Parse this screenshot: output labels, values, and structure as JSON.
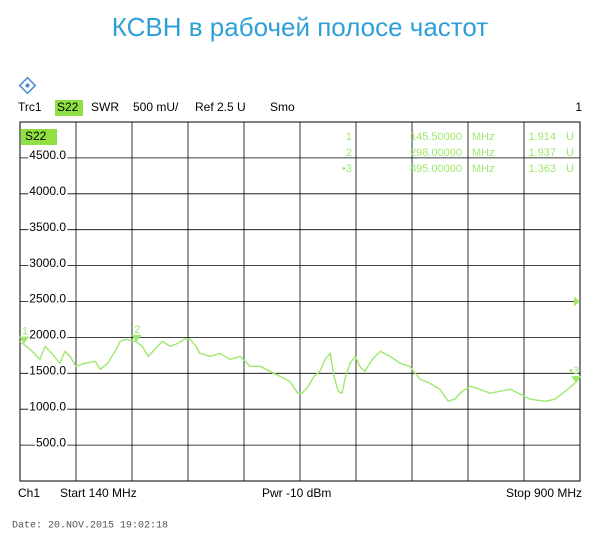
{
  "chart_data": {
    "type": "line",
    "title": "КСВН в рабочей полосе частот",
    "trace_name": "Trc1",
    "parameter": "S22",
    "format": "SWR",
    "scale_label": "500 mU/",
    "ref_label": "Ref 2.5 U",
    "ref_level": 2500,
    "smoothing": "Smo",
    "window": "1",
    "channel": "Ch1",
    "start_label": "Start  140 MHz",
    "power_label": "Pwr  -10 dBm",
    "stop_label": "Stop  900 MHz",
    "date": "Date: 20.NOV.2015  19:02:18",
    "xlim": [
      140,
      900
    ],
    "ylim": [
      0,
      5000
    ],
    "yticks": [
      {
        "value": 500,
        "label": "500.0"
      },
      {
        "value": 1000,
        "label": "1000.0"
      },
      {
        "value": 1500,
        "label": "1500.0"
      },
      {
        "value": 2000,
        "label": "2000.0"
      },
      {
        "value": 2500,
        "label": "2500.0"
      },
      {
        "value": 3000,
        "label": "3000.0"
      },
      {
        "value": 3500,
        "label": "3500.0"
      },
      {
        "value": 4000,
        "label": "4000.0"
      },
      {
        "value": 4500,
        "label": "4500.0"
      }
    ],
    "grid": true,
    "x": [
      140,
      154,
      167,
      174,
      183,
      194,
      201,
      208,
      216,
      228,
      242,
      249,
      259,
      269,
      276,
      284,
      297,
      306,
      314,
      323,
      333,
      344,
      354,
      365,
      371,
      379,
      384,
      398,
      411,
      425,
      439,
      452,
      466,
      479,
      493,
      506,
      517,
      523,
      531,
      539,
      547,
      554,
      561,
      566,
      572,
      577,
      582,
      588,
      595,
      601,
      608,
      618,
      629,
      642,
      656,
      669,
      683,
      696,
      710,
      721,
      730,
      740,
      751,
      764,
      778,
      791,
      805,
      819,
      832,
      853,
      866,
      880,
      893,
      900
    ],
    "series": [
      {
        "color": "#9ee86e",
        "values": [
          1944,
          1833,
          1694,
          1875,
          1778,
          1639,
          1806,
          1736,
          1597,
          1639,
          1667,
          1556,
          1639,
          1806,
          1944,
          1972,
          1944,
          1875,
          1736,
          1833,
          1944,
          1875,
          1917,
          1986,
          1972,
          1875,
          1778,
          1736,
          1778,
          1694,
          1736,
          1597,
          1597,
          1528,
          1458,
          1389,
          1222,
          1222,
          1319,
          1458,
          1528,
          1694,
          1778,
          1458,
          1250,
          1222,
          1458,
          1639,
          1736,
          1597,
          1528,
          1694,
          1806,
          1736,
          1639,
          1597,
          1417,
          1361,
          1278,
          1111,
          1139,
          1250,
          1319,
          1278,
          1222,
          1250,
          1278,
          1208,
          1139,
          1111,
          1139,
          1250,
          1361,
          1458
        ]
      }
    ],
    "marker_x_unit": "MHz",
    "marker_unit": "U",
    "markers": [
      {
        "name": "1",
        "x": 145.5,
        "x_label": "145.50000",
        "value": 1914,
        "value_label": "1.914"
      },
      {
        "name": "2",
        "x": 298,
        "x_label": "298.00000",
        "value": 1937,
        "value_label": "1.937"
      },
      {
        "name": "•3",
        "x": 895,
        "x_label": "895.00000",
        "value": 1363,
        "value_label": "1.363"
      }
    ]
  }
}
